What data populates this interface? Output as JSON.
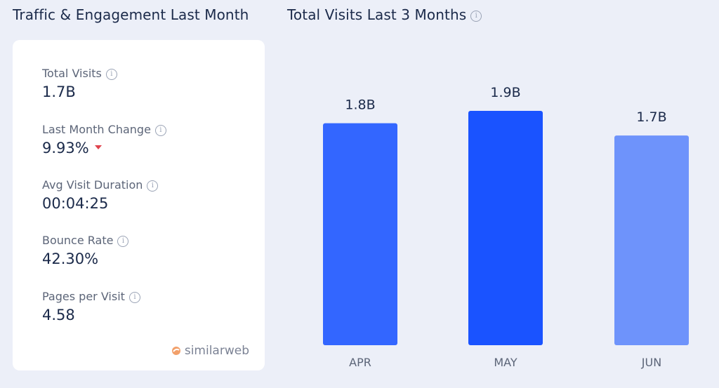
{
  "left_title": "Traffic & Engagement Last Month",
  "right_title": "Total Visits Last 3 Months",
  "metrics": [
    {
      "label": "Total Visits",
      "value": "1.7B"
    },
    {
      "label": "Last Month Change",
      "value": "9.93%",
      "trend": "down"
    },
    {
      "label": "Avg Visit Duration",
      "value": "00:04:25"
    },
    {
      "label": "Bounce Rate",
      "value": "42.30%"
    },
    {
      "label": "Pages per Visit",
      "value": "4.58"
    }
  ],
  "brand": "similarweb",
  "colors": {
    "bar_apr": "#3366ff",
    "bar_may": "#1a53ff",
    "bar_jun": "#6e93fb",
    "trend_down": "#e0444e"
  },
  "chart_data": {
    "type": "bar",
    "title": "Total Visits Last 3 Months",
    "categories": [
      "APR",
      "MAY",
      "JUN"
    ],
    "values": [
      1.8,
      1.9,
      1.7
    ],
    "value_labels": [
      "1.8B",
      "1.9B",
      "1.7B"
    ],
    "unit": "B",
    "grid": false,
    "ylim": [
      0,
      1.9
    ]
  }
}
